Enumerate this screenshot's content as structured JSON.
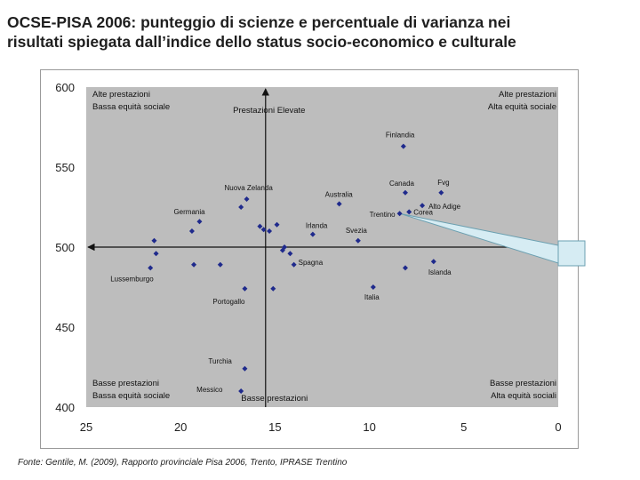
{
  "slide": {
    "title_line1": "OCSE-PISA 2006: punteggio di scienze e percentuale di varianza nei",
    "title_line2": "risultati spiegata dall’indice dello status socio-economico e culturale",
    "footnote": "Fonte: Gentile, M. (2009), Rapporto provinciale Pisa 2006, Trento, IPRASE Trentino"
  },
  "chart_data": {
    "type": "scatter",
    "title": "",
    "xlabel": "",
    "ylabel": "",
    "x_reversed": true,
    "xlim": [
      25,
      0
    ],
    "ylim": [
      400,
      600
    ],
    "x_ticks": [
      25,
      20,
      15,
      10,
      5,
      0
    ],
    "y_ticks": [
      600,
      550,
      500,
      450,
      400
    ],
    "grid": false,
    "background": "#bdbdbd",
    "point_color": "#1f2a8c",
    "quadrant_labels": {
      "top_left": [
        "Alte prestazioni",
        "Bassa equità sociale"
      ],
      "top_right": [
        "Alte prestazioni",
        "Alta equità sociale"
      ],
      "bottom_left": [
        "Basse prestazioni",
        "Bassa equità sociale"
      ],
      "bottom_right": [
        "Basse prestazioni",
        "Alta equità sociali"
      ]
    },
    "axis_labels": {
      "top": "Prestazioni Elevate",
      "bottom": "Basse prestazioni"
    },
    "reference": {
      "x": 15.5,
      "y": 500
    },
    "points": [
      {
        "x": 8.2,
        "y": 563,
        "label": "Finlandia"
      },
      {
        "x": 6.2,
        "y": 534,
        "label": "Fvg"
      },
      {
        "x": 8.1,
        "y": 534,
        "label": "Canada"
      },
      {
        "x": 11.6,
        "y": 527,
        "label": "Australia"
      },
      {
        "x": 7.2,
        "y": 526,
        "label": "Alto Adige"
      },
      {
        "x": 7.9,
        "y": 522,
        "label": "Corea"
      },
      {
        "x": 8.4,
        "y": 521,
        "label": "Trentino"
      },
      {
        "x": 16.5,
        "y": 530,
        "label": "Nuova Zelanda"
      },
      {
        "x": 16.8,
        "y": 525,
        "label": ""
      },
      {
        "x": 19.0,
        "y": 516,
        "label": "Germania"
      },
      {
        "x": 19.4,
        "y": 510,
        "label": ""
      },
      {
        "x": 15.8,
        "y": 513,
        "label": ""
      },
      {
        "x": 15.6,
        "y": 511,
        "label": ""
      },
      {
        "x": 15.3,
        "y": 510,
        "label": ""
      },
      {
        "x": 13.0,
        "y": 508,
        "label": "Irlanda"
      },
      {
        "x": 10.6,
        "y": 504,
        "label": "Svezia"
      },
      {
        "x": 14.9,
        "y": 514,
        "label": ""
      },
      {
        "x": 14.5,
        "y": 500,
        "label": ""
      },
      {
        "x": 14.6,
        "y": 498,
        "label": ""
      },
      {
        "x": 14.2,
        "y": 496,
        "label": ""
      },
      {
        "x": 14.0,
        "y": 489,
        "label": "Spagna"
      },
      {
        "x": 21.4,
        "y": 504,
        "label": ""
      },
      {
        "x": 21.3,
        "y": 496,
        "label": ""
      },
      {
        "x": 21.6,
        "y": 487,
        "label": "Lussemburgo"
      },
      {
        "x": 19.3,
        "y": 489,
        "label": ""
      },
      {
        "x": 17.9,
        "y": 489,
        "label": ""
      },
      {
        "x": 16.6,
        "y": 474,
        "label": "Portogallo"
      },
      {
        "x": 15.1,
        "y": 474,
        "label": ""
      },
      {
        "x": 9.8,
        "y": 475,
        "label": "Italia"
      },
      {
        "x": 8.1,
        "y": 487,
        "label": ""
      },
      {
        "x": 6.6,
        "y": 491,
        "label": "Islanda"
      },
      {
        "x": 16.6,
        "y": 424,
        "label": "Turchia"
      },
      {
        "x": 16.8,
        "y": 410,
        "label": "Messico"
      }
    ]
  }
}
